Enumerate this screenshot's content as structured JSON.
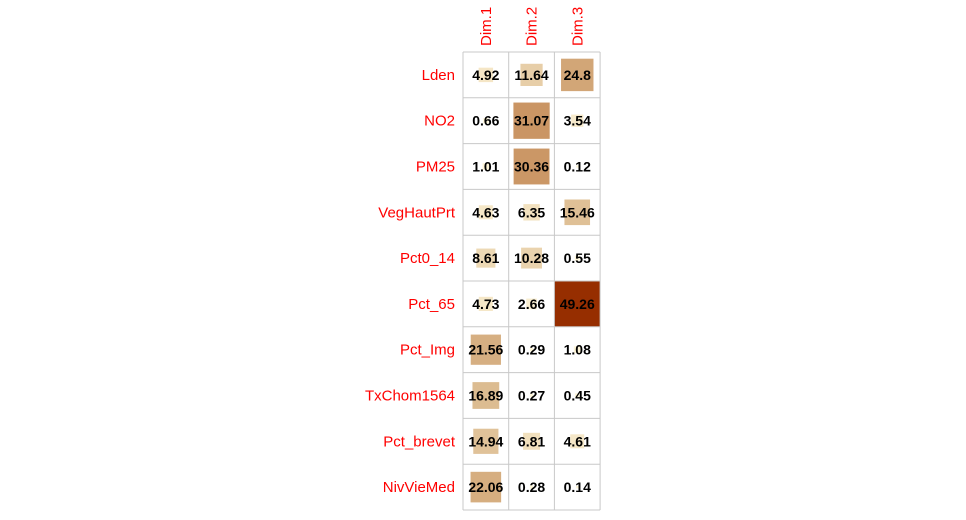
{
  "chart_data": {
    "type": "heatmap",
    "title": "",
    "columns": [
      "Dim.1",
      "Dim.2",
      "Dim.3"
    ],
    "rows": [
      "Lden",
      "NO2",
      "PM25",
      "VegHautPrt",
      "Pct0_14",
      "Pct_65",
      "Pct_Img",
      "TxChom1564",
      "Pct_brevet",
      "NivVieMed"
    ],
    "values": [
      [
        4.92,
        11.64,
        24.8
      ],
      [
        0.66,
        31.07,
        3.54
      ],
      [
        1.01,
        30.36,
        0.12
      ],
      [
        4.63,
        6.35,
        15.46
      ],
      [
        8.61,
        10.28,
        0.55
      ],
      [
        4.73,
        2.66,
        49.26
      ],
      [
        21.56,
        0.29,
        1.08
      ],
      [
        16.89,
        0.27,
        0.45
      ],
      [
        14.94,
        6.81,
        4.61
      ],
      [
        22.06,
        0.28,
        0.14
      ]
    ],
    "value_labels": [
      [
        "4.92",
        "11.64",
        "24.8"
      ],
      [
        "0.66",
        "31.07",
        "3.54"
      ],
      [
        "1.01",
        "30.36",
        "0.12"
      ],
      [
        "4.63",
        "6.35",
        "15.46"
      ],
      [
        "8.61",
        "10.28",
        "0.55"
      ],
      [
        "4.73",
        "2.66",
        "49.26"
      ],
      [
        "21.56",
        "0.29",
        "1.08"
      ],
      [
        "16.89",
        "0.27",
        "0.45"
      ],
      [
        "14.94",
        "6.81",
        "4.61"
      ],
      [
        "22.06",
        "0.28",
        "0.14"
      ]
    ],
    "value_range": [
      0,
      49.26
    ],
    "color_scale": [
      "#fff8dc",
      "#ddbd92",
      "#c8905e",
      "#962e00"
    ],
    "label_color": "#ff0000",
    "grid": true
  }
}
